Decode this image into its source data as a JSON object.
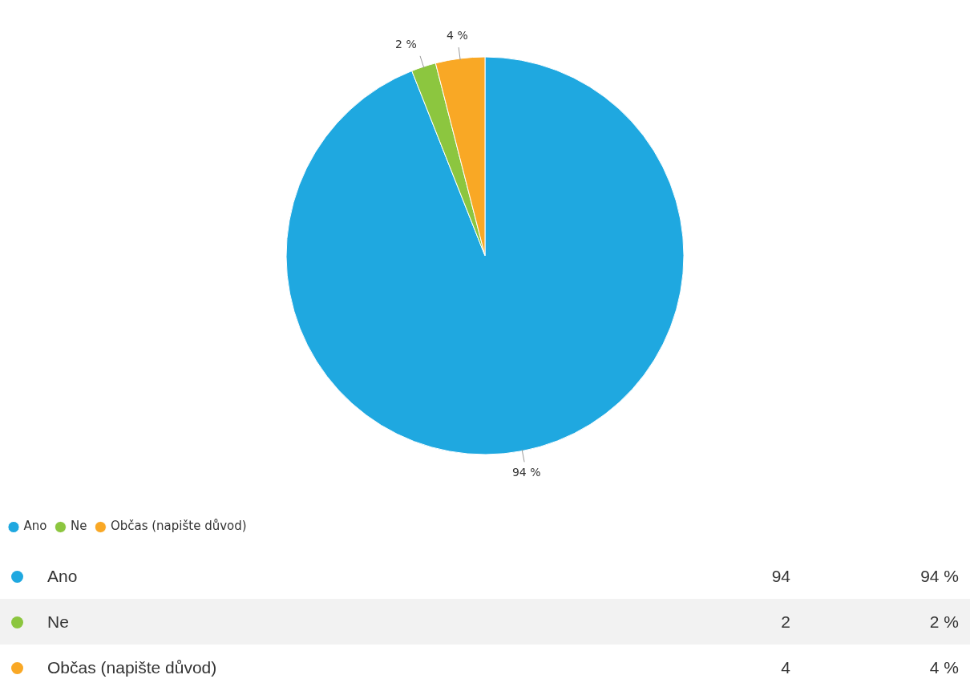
{
  "chart_data": {
    "type": "pie",
    "categories": [
      "Ano",
      "Ne",
      "Občas (napište důvod)"
    ],
    "values": [
      94,
      2,
      4
    ],
    "colors": [
      "#1fa8e0",
      "#8cc63f",
      "#f9a825"
    ],
    "value_labels": [
      "94 %",
      "2 %",
      "4 %"
    ],
    "data_labels": true,
    "annotations": [
      "94",
      "2",
      "4"
    ],
    "legend": "bottom left"
  }
}
